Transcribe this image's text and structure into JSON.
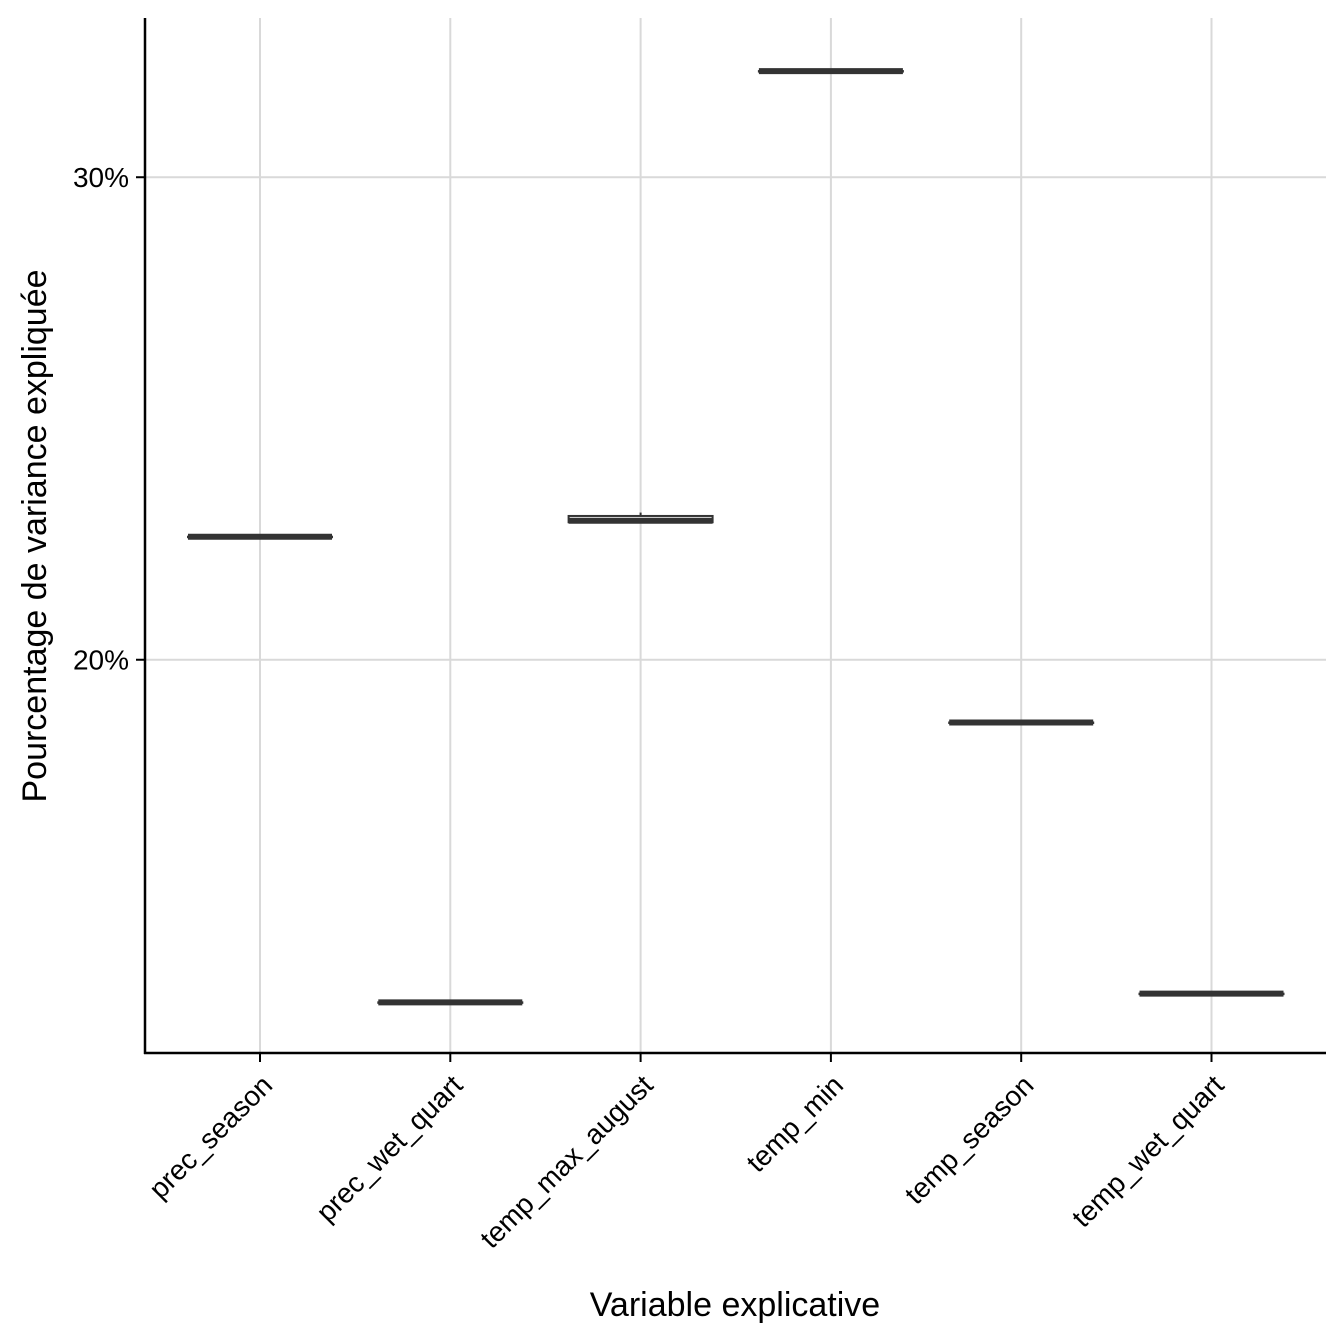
{
  "chart_data": {
    "type": "box",
    "title": "",
    "xlabel": "Variable explicative",
    "ylabel": "Pourcentage de variance expliquée",
    "ylim": [
      11.85,
      33.3
    ],
    "yticks": [
      20,
      30
    ],
    "ytick_labels": [
      "20%",
      "30%"
    ],
    "grid": true,
    "categories": [
      "prec_season",
      "prec_wet_quart",
      "temp_max_august",
      "temp_min",
      "temp_season",
      "temp_wet_quart"
    ],
    "boxes": [
      {
        "category": "prec_season",
        "min": 22.55,
        "q1": 22.55,
        "median": 22.55,
        "q3": 22.55,
        "max": 22.55
      },
      {
        "category": "prec_wet_quart",
        "min": 12.9,
        "q1": 12.9,
        "median": 12.9,
        "q3": 12.9,
        "max": 12.95
      },
      {
        "category": "temp_max_august",
        "min": 22.85,
        "q1": 22.85,
        "median": 22.88,
        "q3": 22.98,
        "max": 23.05
      },
      {
        "category": "temp_min",
        "min": 32.2,
        "q1": 32.2,
        "median": 32.2,
        "q3": 32.2,
        "max": 32.25
      },
      {
        "category": "temp_season",
        "min": 18.7,
        "q1": 18.7,
        "median": 18.7,
        "q3": 18.7,
        "max": 18.7
      },
      {
        "category": "temp_wet_quart",
        "min": 13.08,
        "q1": 13.08,
        "median": 13.08,
        "q3": 13.08,
        "max": 13.08
      }
    ]
  }
}
